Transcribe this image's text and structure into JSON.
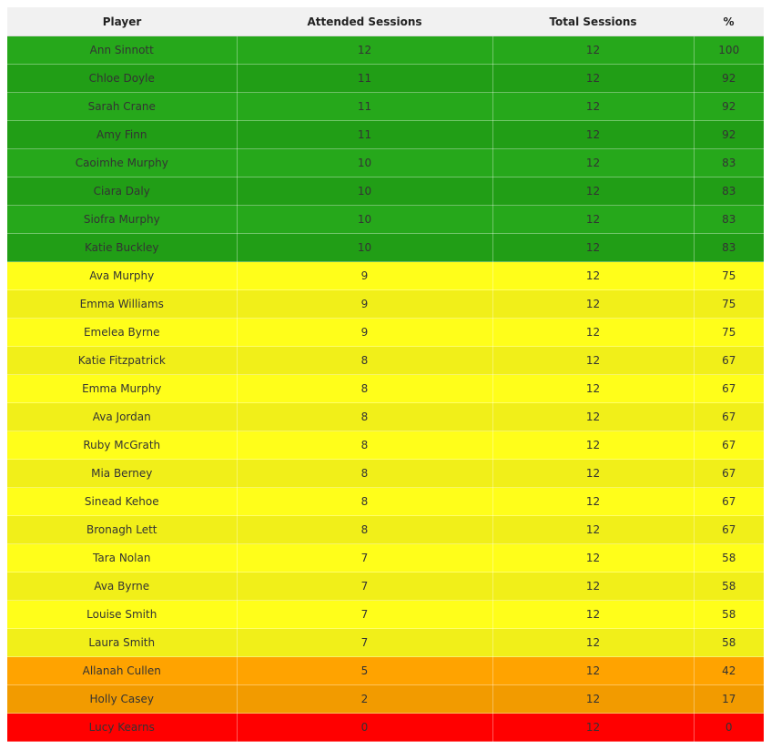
{
  "table": {
    "headers": [
      "Player",
      "Attended Sessions",
      "Total Sessions",
      "%"
    ],
    "colors": {
      "green_a": "#26a81b",
      "green_b": "#219e16",
      "yellow_a": "#fffe1a",
      "yellow_b": "#f1ef19",
      "orange_a": "#ffa300",
      "orange_b": "#f29b00",
      "red": "#ff0000"
    },
    "rows": [
      {
        "player": "Ann Sinnott",
        "attended": "12",
        "total": "12",
        "pct": "100",
        "band": "green"
      },
      {
        "player": "Chloe Doyle",
        "attended": "11",
        "total": "12",
        "pct": "92",
        "band": "green"
      },
      {
        "player": "Sarah Crane",
        "attended": "11",
        "total": "12",
        "pct": "92",
        "band": "green"
      },
      {
        "player": "Amy Finn",
        "attended": "11",
        "total": "12",
        "pct": "92",
        "band": "green"
      },
      {
        "player": "Caoimhe Murphy",
        "attended": "10",
        "total": "12",
        "pct": "83",
        "band": "green"
      },
      {
        "player": "Ciara Daly",
        "attended": "10",
        "total": "12",
        "pct": "83",
        "band": "green"
      },
      {
        "player": "Siofra Murphy",
        "attended": "10",
        "total": "12",
        "pct": "83",
        "band": "green"
      },
      {
        "player": "Katie Buckley",
        "attended": "10",
        "total": "12",
        "pct": "83",
        "band": "green"
      },
      {
        "player": "Ava Murphy",
        "attended": "9",
        "total": "12",
        "pct": "75",
        "band": "yellow"
      },
      {
        "player": "Emma Williams",
        "attended": "9",
        "total": "12",
        "pct": "75",
        "band": "yellow"
      },
      {
        "player": "Emelea Byrne",
        "attended": "9",
        "total": "12",
        "pct": "75",
        "band": "yellow"
      },
      {
        "player": "Katie Fitzpatrick",
        "attended": "8",
        "total": "12",
        "pct": "67",
        "band": "yellow"
      },
      {
        "player": "Emma Murphy",
        "attended": "8",
        "total": "12",
        "pct": "67",
        "band": "yellow"
      },
      {
        "player": "Ava Jordan",
        "attended": "8",
        "total": "12",
        "pct": "67",
        "band": "yellow"
      },
      {
        "player": "Ruby McGrath",
        "attended": "8",
        "total": "12",
        "pct": "67",
        "band": "yellow"
      },
      {
        "player": "Mia Berney",
        "attended": "8",
        "total": "12",
        "pct": "67",
        "band": "yellow"
      },
      {
        "player": "Sinead Kehoe",
        "attended": "8",
        "total": "12",
        "pct": "67",
        "band": "yellow"
      },
      {
        "player": "Bronagh Lett",
        "attended": "8",
        "total": "12",
        "pct": "67",
        "band": "yellow"
      },
      {
        "player": "Tara Nolan",
        "attended": "7",
        "total": "12",
        "pct": "58",
        "band": "yellow"
      },
      {
        "player": "Ava Byrne",
        "attended": "7",
        "total": "12",
        "pct": "58",
        "band": "yellow"
      },
      {
        "player": "Louise Smith",
        "attended": "7",
        "total": "12",
        "pct": "58",
        "band": "yellow"
      },
      {
        "player": "Laura Smith",
        "attended": "7",
        "total": "12",
        "pct": "58",
        "band": "yellow"
      },
      {
        "player": "Allanah Cullen",
        "attended": "5",
        "total": "12",
        "pct": "42",
        "band": "orange"
      },
      {
        "player": "Holly Casey",
        "attended": "2",
        "total": "12",
        "pct": "17",
        "band": "orange"
      },
      {
        "player": "Lucy Kearns",
        "attended": "0",
        "total": "12",
        "pct": "0",
        "band": "red"
      }
    ]
  }
}
